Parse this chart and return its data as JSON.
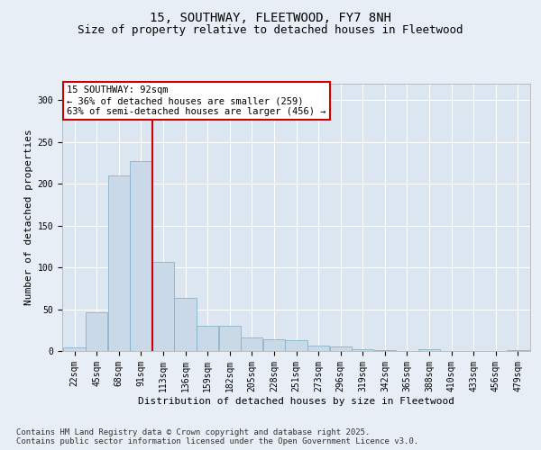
{
  "title": "15, SOUTHWAY, FLEETWOOD, FY7 8NH",
  "subtitle": "Size of property relative to detached houses in Fleetwood",
  "xlabel": "Distribution of detached houses by size in Fleetwood",
  "ylabel": "Number of detached properties",
  "bar_color": "#c9d9e8",
  "bar_edge_color": "#7aaac8",
  "background_color": "#e8eef5",
  "plot_bg_color": "#dce6f0",
  "grid_color": "#ffffff",
  "annotation_line_color": "#cc0000",
  "annotation_box_color": "#cc0000",
  "annotation_text": "15 SOUTHWAY: 92sqm\n← 36% of detached houses are smaller (259)\n63% of semi-detached houses are larger (456) →",
  "property_sqm": 92,
  "bin_labels": [
    "22sqm",
    "45sqm",
    "68sqm",
    "91sqm",
    "113sqm",
    "136sqm",
    "159sqm",
    "182sqm",
    "205sqm",
    "228sqm",
    "251sqm",
    "273sqm",
    "296sqm",
    "319sqm",
    "342sqm",
    "365sqm",
    "388sqm",
    "410sqm",
    "433sqm",
    "456sqm",
    "479sqm"
  ],
  "bar_heights": [
    4,
    46,
    210,
    227,
    107,
    63,
    30,
    30,
    16,
    14,
    13,
    6,
    5,
    2,
    1,
    0,
    2,
    0,
    0,
    0,
    1
  ],
  "ylim": [
    0,
    320
  ],
  "yticks": [
    0,
    50,
    100,
    150,
    200,
    250,
    300
  ],
  "footer_text": "Contains HM Land Registry data © Crown copyright and database right 2025.\nContains public sector information licensed under the Open Government Licence v3.0.",
  "title_fontsize": 10,
  "subtitle_fontsize": 9,
  "label_fontsize": 8,
  "tick_fontsize": 7,
  "footer_fontsize": 6.5,
  "annot_fontsize": 7.5
}
